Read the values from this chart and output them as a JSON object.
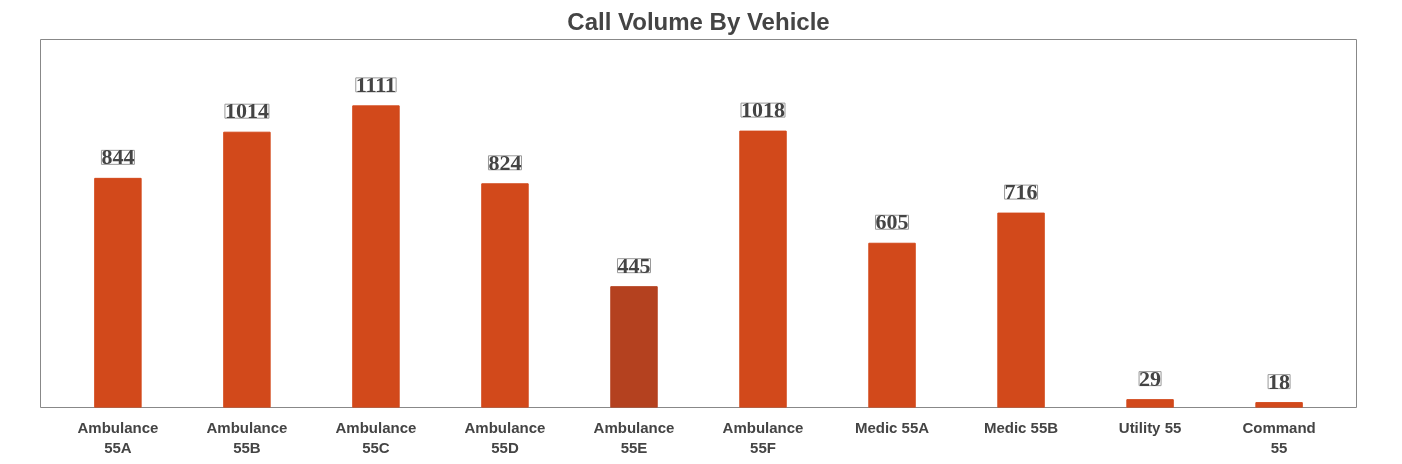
{
  "chart_data": {
    "type": "bar",
    "title": "Call Volume By Vehicle",
    "categories": [
      "Ambulance\n55A",
      "Ambulance\n55B",
      "Ambulance\n55C",
      "Ambulance\n55D",
      "Ambulance\n55E",
      "Ambulance\n55F",
      "Medic 55A",
      "Medic 55B",
      "Utility 55",
      "Command\n55"
    ],
    "values": [
      844,
      1014,
      1111,
      824,
      445,
      1018,
      605,
      716,
      29,
      18
    ],
    "colors": [
      "#d2491b",
      "#d2491b",
      "#d2491b",
      "#d2491b",
      "#b4411f",
      "#d2491b",
      "#d2491b",
      "#d2491b",
      "#d2491b",
      "#d2491b"
    ],
    "data_labels": true
  }
}
